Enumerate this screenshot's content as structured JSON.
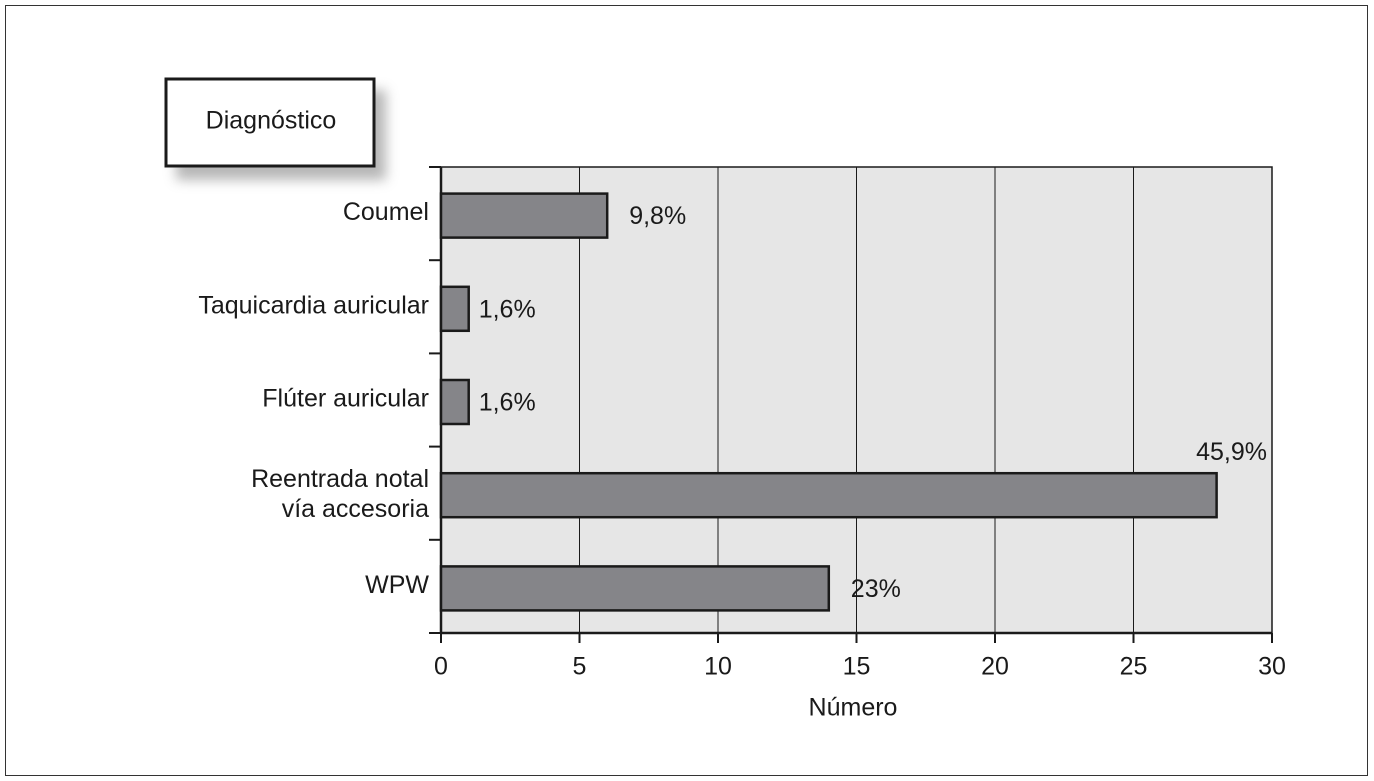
{
  "chart_data": {
    "type": "barh",
    "title": "Diagnóstico",
    "categories": [
      "Coumel",
      "Taquicardia auricular",
      "Flúter auricular",
      [
        "Reentrada notal",
        "vía accesoria"
      ],
      "WPW"
    ],
    "values": [
      6,
      1,
      1,
      28,
      14
    ],
    "value_labels": [
      "9,8%",
      "1,6%",
      "1,6%",
      "45,9%",
      "23%"
    ],
    "color": "#858589",
    "xlabel": "Número",
    "xlim": [
      0,
      30
    ],
    "xticks": [
      0,
      5,
      10,
      15,
      20,
      25,
      30
    ],
    "grid": true
  }
}
